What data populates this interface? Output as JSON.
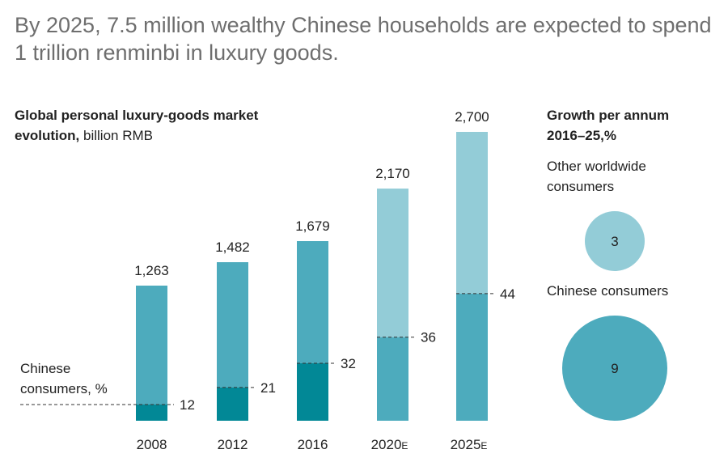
{
  "title": "By 2025, 7.5 million wealthy Chinese households are expected to spend 1 trillion renminbi in luxury goods.",
  "chart_data": [
    {
      "type": "bar",
      "title_bold": "Global personal luxury-goods market evolution,",
      "title_unit": "billion RMB",
      "categories": [
        "2008",
        "2012",
        "2016",
        "2020",
        "2025"
      ],
      "category_suffix": [
        "",
        "",
        "",
        "E",
        "E"
      ],
      "values": [
        1263,
        1482,
        1679,
        2170,
        2700
      ],
      "value_labels": [
        "1,263",
        "1,482",
        "1,679",
        "2,170",
        "2,700"
      ],
      "chinese_share_label": "Chinese consumers, %",
      "chinese_share_pct": [
        12,
        21,
        32,
        36,
        44
      ],
      "estimate": [
        false,
        false,
        false,
        true,
        true
      ],
      "colors": {
        "chinese_actual": "#028896",
        "other_actual": "#4DABBD",
        "chinese_estimate": "#4DABBD",
        "other_estimate": "#93CCD7"
      }
    },
    {
      "type": "bubble",
      "title_bold": "Growth per annum 2016–25,",
      "title_unit": "%",
      "items": [
        {
          "label": "Other worldwide consumers",
          "value": 3,
          "color": "#93CCD7"
        },
        {
          "label": "Chinese consumers",
          "value": 9,
          "color": "#4DABBD"
        }
      ]
    }
  ]
}
